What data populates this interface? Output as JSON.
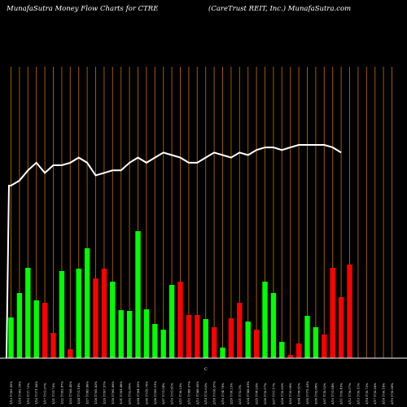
{
  "header": {
    "title_left": "MunafaSutra  Money Flow  Charts for CTRE",
    "title_right": "(CareTrust REIT,  Inc.) MunafaSutra.com"
  },
  "chart_data": {
    "type": "bar",
    "xlabel": "",
    "ylabel": "",
    "grid": true,
    "colors": {
      "up": "#00ff00",
      "down": "#ff0000",
      "grid": "#a05a00",
      "line": "#ffffff",
      "baseline": "#ffffff",
      "background": "#000000"
    },
    "categories": [
      "1/13 17/62.99%",
      "1/14 17/62.18%",
      "1/15 17/7.72%",
      "1/16 17/71.58%",
      "1/17 17/1.97%",
      "1/21 17/1.79%",
      "1/22 17/62.87%",
      "1/23 17/08.45%",
      "1/24 17/1.14%",
      "1/27 17/83.86%",
      "1/28 17/05.82%",
      "1/29 17/97.57%",
      "1/30 17/65.89%",
      "1/31 17/81.48%",
      "2/03 17/2.85%",
      "2/04 17/64.55%",
      "2/05 17/15.76%",
      "2/06 17/55.01%",
      "2/07 17/1.04%",
      "2/10 17/1.81%",
      "2/11 17/6.23%",
      "2/12 17/88.07%",
      "2/13 17/88.95%",
      "2/14 17/2.63%",
      "2/18 17/16.67%",
      "2/19 17/4.78%",
      "2/20 17/8.23%",
      "2/21 17/2.5%",
      "2/24 17/88.81%",
      "2/25 17/8.93%",
      "2/26 17/0.57%",
      "2/27 17/1.17%",
      "2/28 17/0.83%",
      "3/03 17/0.08%",
      "3/04 17/8.61%",
      "3/05 17/75.03%",
      "3/06 17/2.88%",
      "3/07 17/5.52%",
      "3/10 17/1.94%",
      "3/11 17/0.45%",
      "3/12 17/8.07%",
      "3/13 17/0.11%",
      "3/14 17/0.72%",
      "3/17 17/5.28%",
      "3/18 17/0.14%",
      "3/19 17/0.98%"
    ],
    "values": [
      50,
      80,
      111,
      71,
      68,
      31,
      107,
      11,
      110,
      135,
      98,
      110,
      94,
      59,
      58,
      156,
      60,
      42,
      35,
      90,
      94,
      53,
      53,
      48,
      38,
      13,
      49,
      68,
      45,
      35,
      94,
      80,
      20,
      4,
      18,
      52,
      38,
      29,
      111,
      75,
      115,
      0,
      0,
      0,
      0,
      0
    ],
    "directions": [
      "up",
      "up",
      "up",
      "up",
      "down",
      "down",
      "up",
      "down",
      "up",
      "up",
      "down",
      "down",
      "up",
      "up",
      "up",
      "up",
      "up",
      "up",
      "up",
      "up",
      "down",
      "down",
      "down",
      "up",
      "down",
      "up",
      "down",
      "down",
      "up",
      "down",
      "up",
      "up",
      "up",
      "down",
      "down",
      "up",
      "up",
      "down",
      "down",
      "down",
      "down",
      "up",
      "up",
      "up",
      "up",
      "up"
    ],
    "line_values": [
      73,
      75,
      79,
      82,
      78,
      81,
      81,
      82,
      84,
      82,
      77,
      78,
      79,
      79,
      82,
      84,
      82,
      84,
      86,
      85,
      84,
      82,
      82,
      84,
      86,
      85,
      84,
      86,
      85,
      87,
      88,
      88,
      87,
      88,
      89,
      89,
      89,
      89,
      88,
      86,
      0,
      0,
      0,
      0,
      0,
      0
    ],
    "x_axis_marker": "C"
  }
}
